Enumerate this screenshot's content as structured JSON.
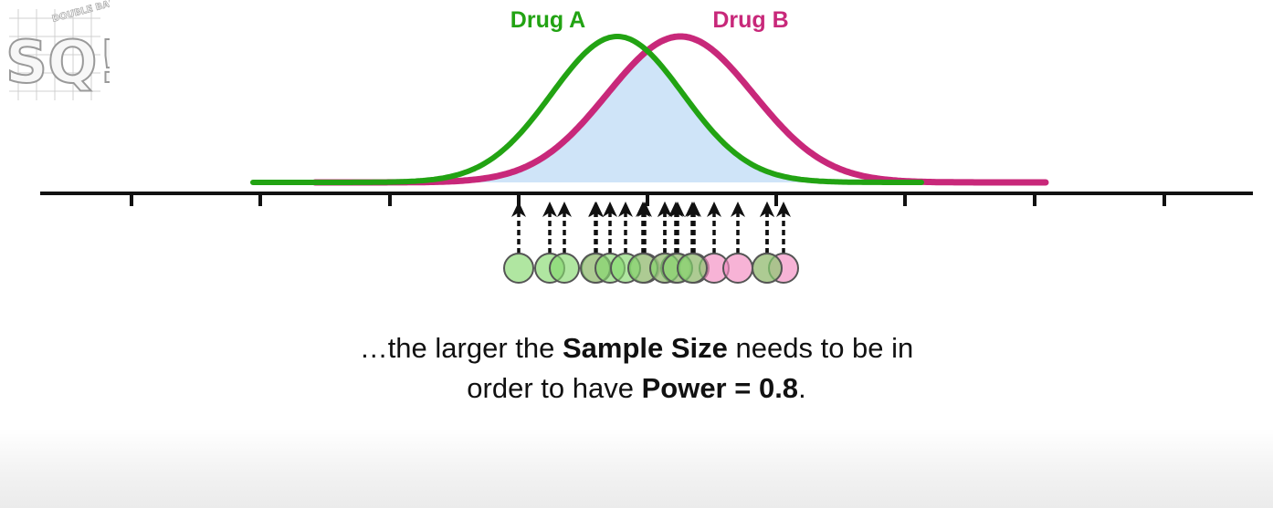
{
  "labels": {
    "drug_a": "Drug A",
    "drug_b": "Drug B"
  },
  "caption": {
    "line1_pre": "…the larger the ",
    "line1_bold": "Sample Size",
    "line1_post": " needs to be in",
    "line2_pre": "order to have ",
    "line2_bold": "Power = 0.8",
    "line2_post": "."
  },
  "logo": {
    "text_big": "SQ!",
    "text_small": "DOUBLE BAM!!!"
  },
  "colors": {
    "drug_a": "#22a313",
    "drug_b": "#c8287a",
    "overlap_fill": "#cfe4f8",
    "axis": "#111111",
    "green_sample": "#86d86f",
    "pink_sample": "#f28ac0"
  },
  "samples": {
    "drug_a": [
      568,
      602,
      618,
      652,
      668,
      685,
      704,
      728,
      742,
      758,
      840
    ],
    "drug_b": [
      653,
      706,
      728,
      740,
      760,
      782,
      808,
      840,
      858
    ]
  }
}
